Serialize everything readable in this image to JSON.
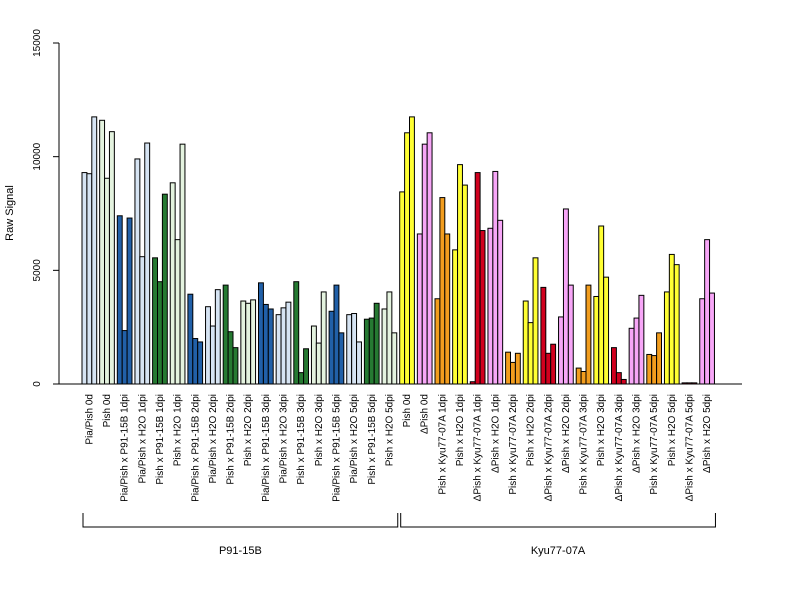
{
  "chart_data": {
    "type": "bar",
    "ylabel": "Raw Signal",
    "ylim": [
      0,
      15000
    ],
    "yticks": [
      0,
      5000,
      10000,
      15000
    ],
    "colors": {
      "lightblue": "#d6e4f3",
      "lightgreen": "#e4f3df",
      "blue": "#2160a8",
      "green": "#267a32",
      "yellow": "#ffff33",
      "violet": "#f7a6f7",
      "orange": "#f29d1e",
      "red": "#d1001e"
    },
    "groups": [
      {
        "label": "Pia/Pish 0d",
        "color": "lightblue",
        "values": [
          9300,
          9250,
          11750
        ]
      },
      {
        "label": "Pish 0d",
        "color": "lightgreen",
        "values": [
          11600,
          9050,
          11100
        ]
      },
      {
        "label": "Pia/Pish x P91-15B 1dpi",
        "color": "blue",
        "values": [
          7400,
          2350,
          7300
        ]
      },
      {
        "label": "Pia/Pish x H2O 1dpi",
        "color": "lightblue",
        "values": [
          9900,
          5600,
          10600
        ]
      },
      {
        "label": "Pish x P91-15B 1dpi",
        "color": "green",
        "values": [
          5550,
          4500,
          8350
        ]
      },
      {
        "label": "Pish x H2O 1dpi",
        "color": "lightgreen",
        "values": [
          8850,
          6350,
          10550
        ]
      },
      {
        "label": "Pia/Pish x P91-15B 2dpi",
        "color": "blue",
        "values": [
          3950,
          2000,
          1850
        ]
      },
      {
        "label": "Pia/Pish x H2O 2dpi",
        "color": "lightblue",
        "values": [
          3400,
          2550,
          4150
        ]
      },
      {
        "label": "Pish x P91-15B 2dpi",
        "color": "green",
        "values": [
          4350,
          2300,
          1600
        ]
      },
      {
        "label": "Pish x H2O 2dpi",
        "color": "lightgreen",
        "values": [
          3650,
          3550,
          3700
        ]
      },
      {
        "label": "Pia/Pish x P91-15B 3dpi",
        "color": "blue",
        "values": [
          4450,
          3500,
          3300
        ]
      },
      {
        "label": "Pia/Pish x H2O 3dpi",
        "color": "lightblue",
        "values": [
          3050,
          3350,
          3600
        ]
      },
      {
        "label": "Pish x P91-15B 3dpi",
        "color": "green",
        "values": [
          4500,
          500,
          1550
        ]
      },
      {
        "label": "Pish x H2O 3dpi",
        "color": "lightgreen",
        "values": [
          2550,
          1800,
          4050
        ]
      },
      {
        "label": "Pia/Pish x P91-15B 5dpi",
        "color": "blue",
        "values": [
          3200,
          4350,
          2250
        ]
      },
      {
        "label": "Pia/Pish x H2O 5dpi",
        "color": "lightblue",
        "values": [
          3050,
          3100,
          1850
        ]
      },
      {
        "label": "Pish x P91-15B 5dpi",
        "color": "green",
        "values": [
          2850,
          2900,
          3550
        ]
      },
      {
        "label": "Pish x H2O 5dpi",
        "color": "lightgreen",
        "values": [
          3300,
          4050,
          2250
        ]
      },
      {
        "label": "Pish 0d",
        "color": "yellow",
        "values": [
          8450,
          11050,
          11750
        ]
      },
      {
        "label": "ΔPish 0d",
        "color": "violet",
        "values": [
          6600,
          10550,
          11050
        ]
      },
      {
        "label": "Pish x Kyu77-07A 1dpi",
        "color": "orange",
        "values": [
          3750,
          8200,
          6600
        ]
      },
      {
        "label": "Pish x H2O 1dpi",
        "color": "yellow",
        "values": [
          5900,
          9650,
          8750
        ]
      },
      {
        "label": "ΔPish x Kyu77-07A 1dpi",
        "color": "red",
        "values": [
          100,
          9300,
          6750
        ]
      },
      {
        "label": "ΔPish x H2O 1dpi",
        "color": "violet",
        "values": [
          6850,
          9350,
          7200
        ]
      },
      {
        "label": "Pish x Kyu77-07A 2dpi",
        "color": "orange",
        "values": [
          1400,
          950,
          1350
        ]
      },
      {
        "label": "Pish x H2O 2dpi",
        "color": "yellow",
        "values": [
          3650,
          2700,
          5550
        ]
      },
      {
        "label": "ΔPish x Kyu77-07A 2dpi",
        "color": "red",
        "values": [
          4250,
          1350,
          1750
        ]
      },
      {
        "label": "ΔPish x H2O 2dpi",
        "color": "violet",
        "values": [
          2950,
          7700,
          4350
        ]
      },
      {
        "label": "Pish x Kyu77-07A 3dpi",
        "color": "orange",
        "values": [
          700,
          550,
          4350
        ]
      },
      {
        "label": "Pish x H2O 3dpi",
        "color": "yellow",
        "values": [
          3850,
          6950,
          4700
        ]
      },
      {
        "label": "ΔPish x Kyu77-07A 3dpi",
        "color": "red",
        "values": [
          1600,
          500,
          200
        ]
      },
      {
        "label": "ΔPish x H2O 3dpi",
        "color": "violet",
        "values": [
          2450,
          2900,
          3900
        ]
      },
      {
        "label": "Pish x Kyu77-07A 5dpi",
        "color": "orange",
        "values": [
          1300,
          1250,
          2250
        ]
      },
      {
        "label": "Pish x H2O 5dpi",
        "color": "yellow",
        "values": [
          4050,
          5700,
          5250
        ]
      },
      {
        "label": "ΔPish x Kyu77-07A 5dpi",
        "color": "red",
        "values": [
          50,
          50,
          50
        ]
      },
      {
        "label": "ΔPish x H2O 5dpi",
        "color": "violet",
        "values": [
          3750,
          6350,
          4000
        ]
      }
    ],
    "supergroups": [
      {
        "label": "P91-15B",
        "from": 0,
        "to": 17
      },
      {
        "label": "Kyu77-07A",
        "from": 18,
        "to": 35
      }
    ],
    "grid": false,
    "legend": "none"
  }
}
